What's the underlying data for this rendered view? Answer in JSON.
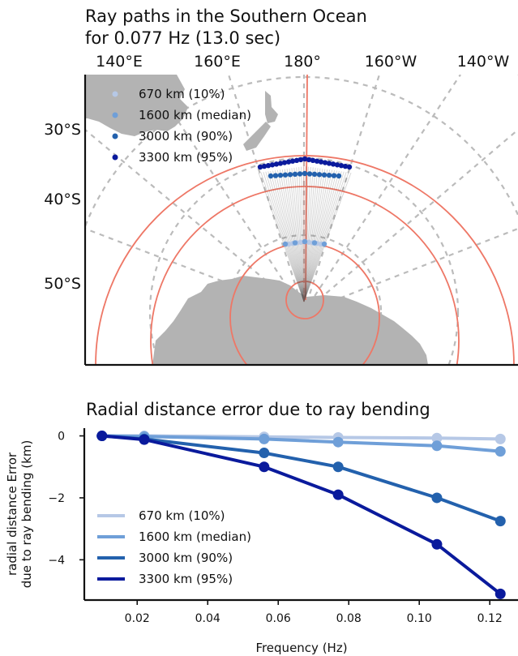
{
  "chart_data": [
    {
      "type": "map",
      "title_lines": [
        "Ray paths in the Southern Ocean",
        "for 0.077 Hz (13.0  sec)"
      ],
      "lon_labels": [
        "140°E",
        "160°E",
        "180°",
        "160°W",
        "140°W"
      ],
      "lat_labels": [
        "30°S",
        "40°S",
        "50°S"
      ],
      "legend_position": "top-left",
      "grid": true,
      "series": [
        {
          "name": "670 km (10%)",
          "color": "#b6c8e6"
        },
        {
          "name": "1600 km (median)",
          "color": "#6f9fd8"
        },
        {
          "name": "3000 km (90%)",
          "color": "#2361ad"
        },
        {
          "name": "3300 km (95%)",
          "color": "#0a1a9c"
        }
      ],
      "colors": {
        "land": "#b3b3b3",
        "range_rings": "#ee7766",
        "grid": "#bbbbbb",
        "rays": "#555555"
      }
    },
    {
      "type": "line",
      "title": "Radial distance error due to ray bending",
      "xlabel": "Frequency (Hz)",
      "ylabel_lines": [
        "radial distance Error",
        "due to ray bending (km)"
      ],
      "xlim": [
        0.005,
        0.128
      ],
      "ylim": [
        -5.3,
        0.25
      ],
      "xticks": [
        0.02,
        0.04,
        0.06,
        0.08,
        0.1,
        0.12
      ],
      "xtick_labels": [
        "0.02",
        "0.04",
        "0.06",
        "0.08",
        "0.10",
        "0.12"
      ],
      "yticks": [
        0,
        -2,
        -4
      ],
      "ytick_labels": [
        "0",
        "−2",
        "−4"
      ],
      "legend_position": "bottom-left",
      "grid": false,
      "x": [
        0.01,
        0.022,
        0.056,
        0.077,
        0.105,
        0.123
      ],
      "series": [
        {
          "name": "670 km (10%)",
          "color": "#b6c8e6",
          "values": [
            0.0,
            0.0,
            -0.03,
            -0.05,
            -0.07,
            -0.1
          ]
        },
        {
          "name": "1600 km (median)",
          "color": "#6f9fd8",
          "values": [
            0.0,
            -0.02,
            -0.1,
            -0.2,
            -0.32,
            -0.5
          ]
        },
        {
          "name": "3000 km (90%)",
          "color": "#2361ad",
          "values": [
            0.0,
            -0.1,
            -0.55,
            -1.0,
            -2.0,
            -2.75
          ]
        },
        {
          "name": "3300 km (95%)",
          "color": "#0a1a9c",
          "values": [
            0.0,
            -0.12,
            -1.0,
            -1.9,
            -3.5,
            -5.1
          ]
        }
      ]
    }
  ]
}
